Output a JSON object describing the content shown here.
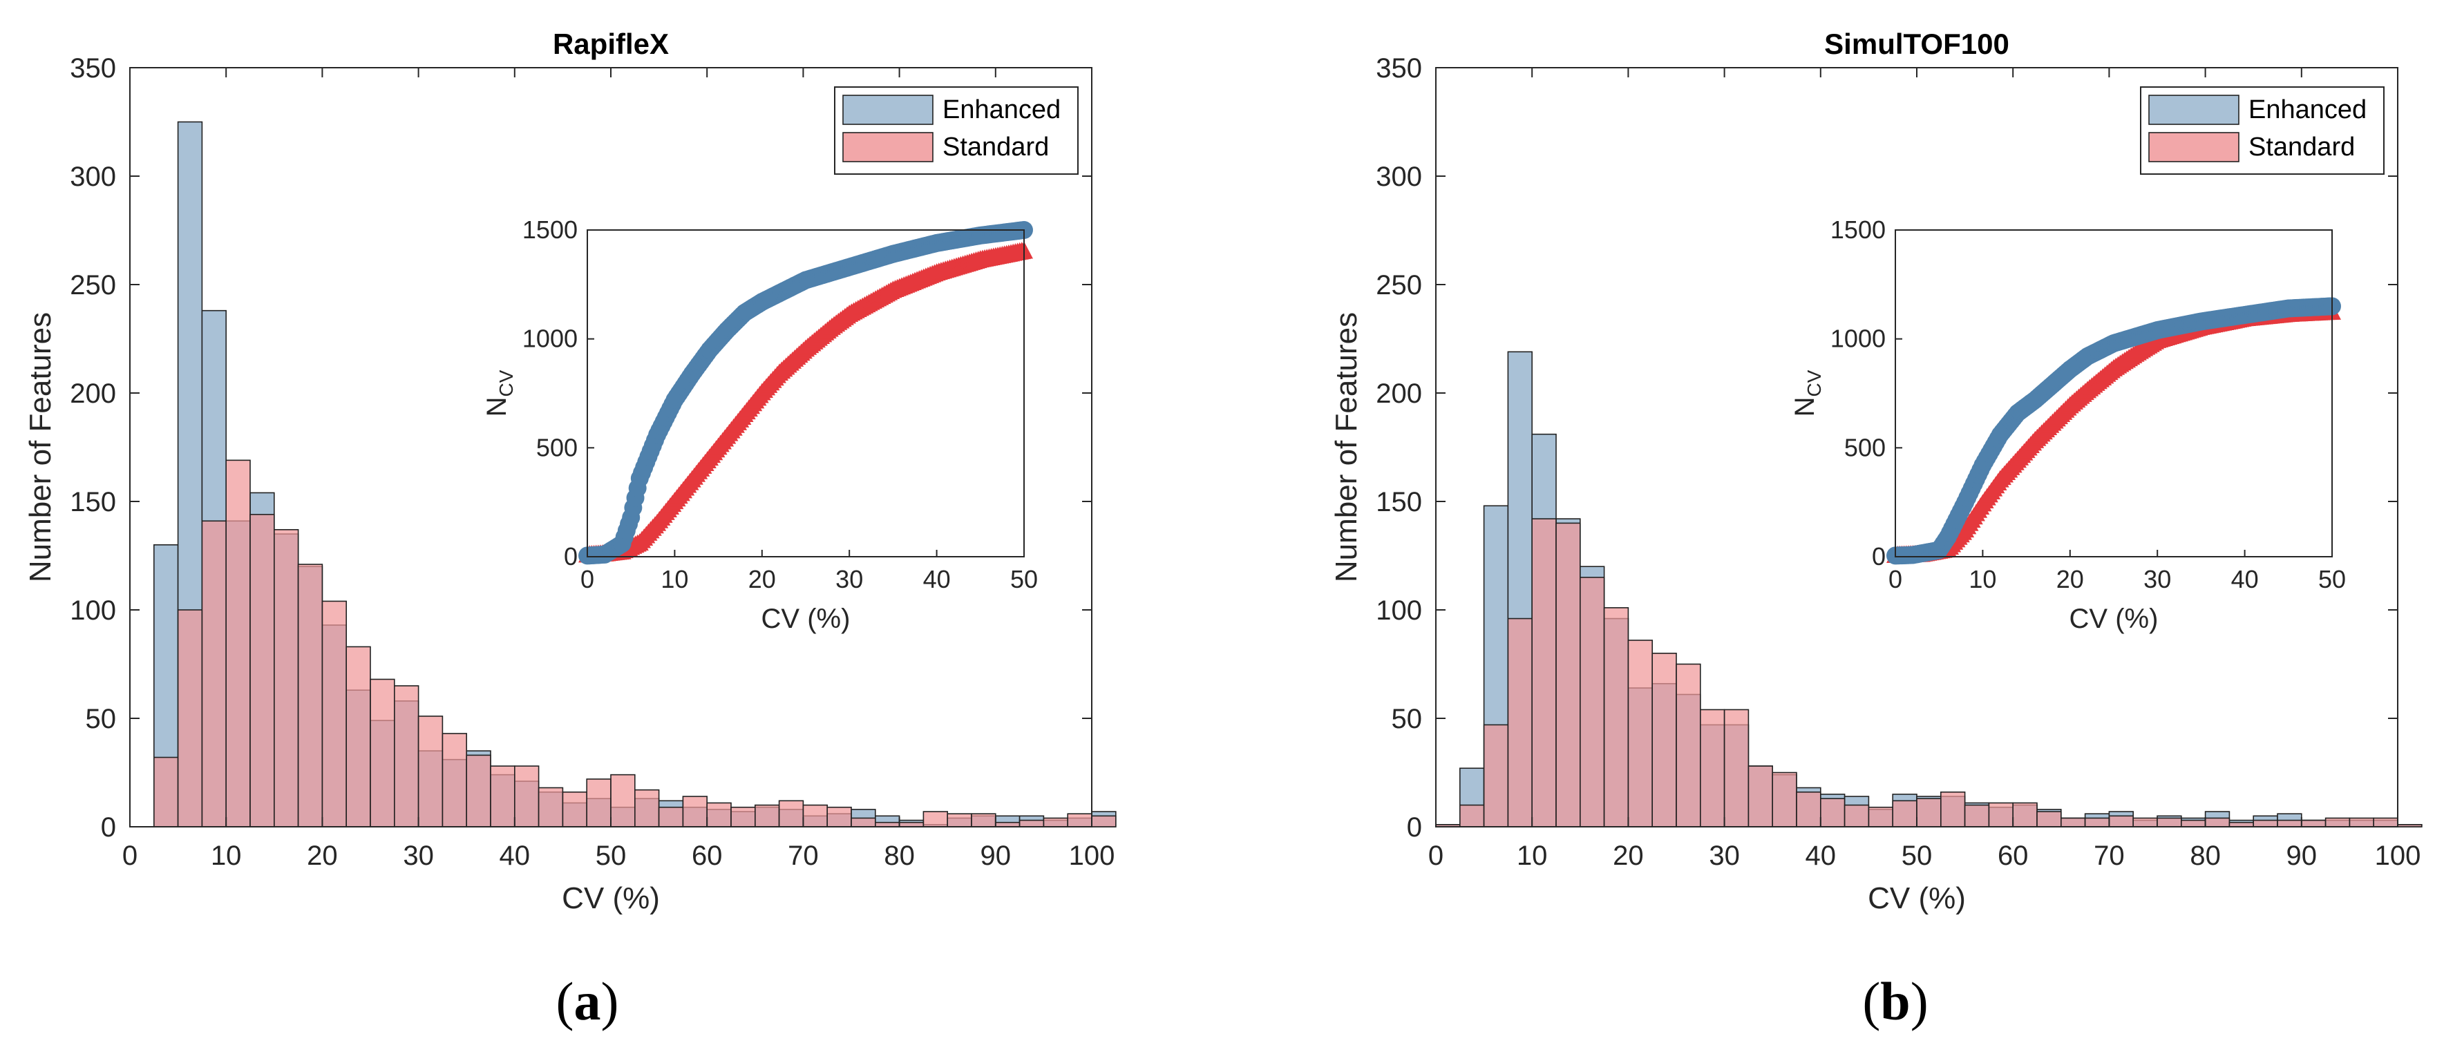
{
  "panels": [
    {
      "caption_letter": "a",
      "chart_data": {
        "type": "bar",
        "title": "RapifleX",
        "xlabel": "CV (%)",
        "ylabel": "Number of Features",
        "xlim": [
          0,
          100
        ],
        "ylim": [
          0,
          350
        ],
        "xticks": [
          0,
          10,
          20,
          30,
          40,
          50,
          60,
          70,
          80,
          90,
          100
        ],
        "yticks": [
          0,
          50,
          100,
          150,
          200,
          250,
          300,
          350
        ],
        "bin_width": 2.5,
        "bin_start": 2.5,
        "legend_position": "top-right",
        "series": [
          {
            "name": "Enhanced",
            "color": "#a9c1d6",
            "values": [
              130,
              325,
              238,
              141,
              154,
              135,
              120,
              93,
              63,
              49,
              58,
              35,
              31,
              35,
              24,
              21,
              16,
              11,
              13,
              9,
              13,
              12,
              9,
              8,
              7,
              9,
              8,
              5,
              6,
              8,
              5,
              3,
              1,
              4,
              5,
              5,
              5,
              3,
              4,
              7
            ]
          },
          {
            "name": "Standard",
            "color": "#f0989a",
            "values": [
              32,
              100,
              141,
              169,
              144,
              137,
              121,
              104,
              83,
              68,
              65,
              51,
              43,
              33,
              28,
              28,
              18,
              16,
              22,
              24,
              17,
              9,
              14,
              11,
              9,
              10,
              12,
              10,
              9,
              4,
              2,
              2,
              7,
              6,
              6,
              2,
              3,
              4,
              6,
              5
            ]
          }
        ],
        "inset": {
          "type": "scatter",
          "xlabel": "CV (%)",
          "ylabel_main": "N",
          "ylabel_sub": "CV",
          "xlim": [
            0,
            50
          ],
          "ylim": [
            0,
            1500
          ],
          "xticks": [
            0,
            10,
            20,
            30,
            40,
            50
          ],
          "yticks": [
            0,
            500,
            1000,
            1500
          ],
          "series": [
            {
              "name": "Enhanced",
              "marker": "circle",
              "color": "#4f81ac",
              "points": [
                [
                  0,
                  5
                ],
                [
                  2,
                  10
                ],
                [
                  4,
                  60
                ],
                [
                  5,
                  180
                ],
                [
                  6,
                  360
                ],
                [
                  8,
                  560
                ],
                [
                  10,
                  720
                ],
                [
                  12,
                  840
                ],
                [
                  14,
                  950
                ],
                [
                  16,
                  1040
                ],
                [
                  18,
                  1120
                ],
                [
                  20,
                  1170
                ],
                [
                  22,
                  1210
                ],
                [
                  25,
                  1270
                ],
                [
                  30,
                  1330
                ],
                [
                  35,
                  1390
                ],
                [
                  40,
                  1440
                ],
                [
                  45,
                  1475
                ],
                [
                  50,
                  1500
                ]
              ]
            },
            {
              "name": "Standard",
              "marker": "triangle",
              "color": "#e5383d",
              "points": [
                [
                  0,
                  5
                ],
                [
                  2,
                  10
                ],
                [
                  4,
                  20
                ],
                [
                  6,
                  60
                ],
                [
                  8,
                  150
                ],
                [
                  10,
                  250
                ],
                [
                  12,
                  350
                ],
                [
                  14,
                  450
                ],
                [
                  16,
                  550
                ],
                [
                  18,
                  650
                ],
                [
                  20,
                  750
                ],
                [
                  22,
                  840
                ],
                [
                  25,
                  950
                ],
                [
                  28,
                  1050
                ],
                [
                  30,
                  1110
                ],
                [
                  35,
                  1220
                ],
                [
                  40,
                  1300
                ],
                [
                  45,
                  1360
                ],
                [
                  50,
                  1400
                ]
              ]
            }
          ]
        }
      }
    },
    {
      "caption_letter": "b",
      "chart_data": {
        "type": "bar",
        "title": "SimulTOF100",
        "xlabel": "CV (%)",
        "ylabel": "Number of Features",
        "xlim": [
          0,
          100
        ],
        "ylim": [
          0,
          350
        ],
        "xticks": [
          0,
          10,
          20,
          30,
          40,
          50,
          60,
          70,
          80,
          90,
          100
        ],
        "yticks": [
          0,
          50,
          100,
          150,
          200,
          250,
          300,
          350
        ],
        "bin_width": 2.5,
        "bin_start": 0,
        "legend_position": "top-right",
        "series": [
          {
            "name": "Enhanced",
            "color": "#a9c1d6",
            "values": [
              1,
              27,
              148,
              219,
              181,
              142,
              120,
              96,
              64,
              66,
              61,
              47,
              47,
              28,
              24,
              18,
              15,
              14,
              8,
              15,
              14,
              14,
              11,
              9,
              10,
              8,
              4,
              6,
              7,
              3,
              5,
              4,
              7,
              3,
              5,
              6,
              3,
              3,
              3,
              3,
              1
            ]
          },
          {
            "name": "Standard",
            "color": "#f0989a",
            "values": [
              1,
              10,
              47,
              96,
              142,
              140,
              115,
              101,
              86,
              80,
              75,
              54,
              54,
              28,
              25,
              16,
              13,
              10,
              9,
              12,
              13,
              16,
              10,
              11,
              11,
              7,
              4,
              4,
              5,
              4,
              4,
              3,
              4,
              2,
              3,
              3,
              3,
              4,
              4,
              4,
              1
            ]
          }
        ],
        "inset": {
          "type": "scatter",
          "xlabel": "CV (%)",
          "ylabel_main": "N",
          "ylabel_sub": "CV",
          "xlim": [
            0,
            50
          ],
          "ylim": [
            0,
            1500
          ],
          "xticks": [
            0,
            10,
            20,
            30,
            40,
            50
          ],
          "yticks": [
            0,
            500,
            1000,
            1500
          ],
          "series": [
            {
              "name": "Enhanced",
              "marker": "circle",
              "color": "#4f81ac",
              "points": [
                [
                  0,
                  5
                ],
                [
                  2,
                  8
                ],
                [
                  5,
                  30
                ],
                [
                  6,
                  90
                ],
                [
                  8,
                  250
                ],
                [
                  10,
                  420
                ],
                [
                  12,
                  560
                ],
                [
                  14,
                  660
                ],
                [
                  16,
                  720
                ],
                [
                  18,
                  790
                ],
                [
                  20,
                  860
                ],
                [
                  22,
                  920
                ],
                [
                  25,
                  980
                ],
                [
                  30,
                  1040
                ],
                [
                  35,
                  1080
                ],
                [
                  40,
                  1110
                ],
                [
                  45,
                  1140
                ],
                [
                  50,
                  1150
                ]
              ]
            },
            {
              "name": "Standard",
              "marker": "triangle",
              "color": "#e5383d",
              "points": [
                [
                  0,
                  3
                ],
                [
                  3,
                  8
                ],
                [
                  6,
                  30
                ],
                [
                  8,
                  120
                ],
                [
                  10,
                  240
                ],
                [
                  12,
                  350
                ],
                [
                  14,
                  440
                ],
                [
                  16,
                  530
                ],
                [
                  18,
                  610
                ],
                [
                  20,
                  690
                ],
                [
                  22,
                  760
                ],
                [
                  25,
                  860
                ],
                [
                  28,
                  940
                ],
                [
                  30,
                  990
                ],
                [
                  35,
                  1050
                ],
                [
                  40,
                  1090
                ],
                [
                  45,
                  1110
                ],
                [
                  50,
                  1120
                ]
              ]
            }
          ]
        }
      }
    }
  ]
}
